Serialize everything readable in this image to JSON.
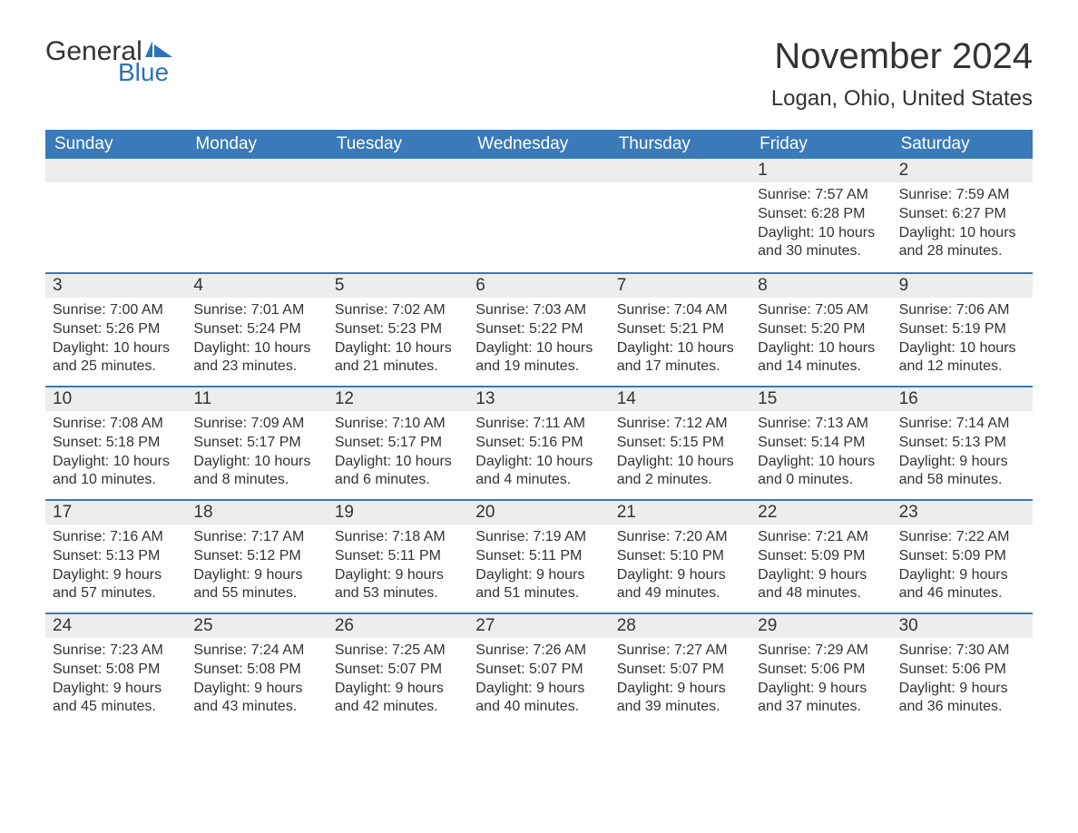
{
  "logo": {
    "text_general": "General",
    "text_blue": "Blue",
    "flag_color": "#2d72b8"
  },
  "title": "November 2024",
  "location": "Logan, Ohio, United States",
  "colors": {
    "header_bg": "#3a7ab8",
    "header_text": "#ffffff",
    "daynum_bg": "#ededed",
    "border": "#3a7ab8",
    "text": "#333333"
  },
  "day_headers": [
    "Sunday",
    "Monday",
    "Tuesday",
    "Wednesday",
    "Thursday",
    "Friday",
    "Saturday"
  ],
  "weeks": [
    [
      {
        "num": "",
        "sunrise": "",
        "sunset": "",
        "daylight1": "",
        "daylight2": ""
      },
      {
        "num": "",
        "sunrise": "",
        "sunset": "",
        "daylight1": "",
        "daylight2": ""
      },
      {
        "num": "",
        "sunrise": "",
        "sunset": "",
        "daylight1": "",
        "daylight2": ""
      },
      {
        "num": "",
        "sunrise": "",
        "sunset": "",
        "daylight1": "",
        "daylight2": ""
      },
      {
        "num": "",
        "sunrise": "",
        "sunset": "",
        "daylight1": "",
        "daylight2": ""
      },
      {
        "num": "1",
        "sunrise": "Sunrise: 7:57 AM",
        "sunset": "Sunset: 6:28 PM",
        "daylight1": "Daylight: 10 hours",
        "daylight2": "and 30 minutes."
      },
      {
        "num": "2",
        "sunrise": "Sunrise: 7:59 AM",
        "sunset": "Sunset: 6:27 PM",
        "daylight1": "Daylight: 10 hours",
        "daylight2": "and 28 minutes."
      }
    ],
    [
      {
        "num": "3",
        "sunrise": "Sunrise: 7:00 AM",
        "sunset": "Sunset: 5:26 PM",
        "daylight1": "Daylight: 10 hours",
        "daylight2": "and 25 minutes."
      },
      {
        "num": "4",
        "sunrise": "Sunrise: 7:01 AM",
        "sunset": "Sunset: 5:24 PM",
        "daylight1": "Daylight: 10 hours",
        "daylight2": "and 23 minutes."
      },
      {
        "num": "5",
        "sunrise": "Sunrise: 7:02 AM",
        "sunset": "Sunset: 5:23 PM",
        "daylight1": "Daylight: 10 hours",
        "daylight2": "and 21 minutes."
      },
      {
        "num": "6",
        "sunrise": "Sunrise: 7:03 AM",
        "sunset": "Sunset: 5:22 PM",
        "daylight1": "Daylight: 10 hours",
        "daylight2": "and 19 minutes."
      },
      {
        "num": "7",
        "sunrise": "Sunrise: 7:04 AM",
        "sunset": "Sunset: 5:21 PM",
        "daylight1": "Daylight: 10 hours",
        "daylight2": "and 17 minutes."
      },
      {
        "num": "8",
        "sunrise": "Sunrise: 7:05 AM",
        "sunset": "Sunset: 5:20 PM",
        "daylight1": "Daylight: 10 hours",
        "daylight2": "and 14 minutes."
      },
      {
        "num": "9",
        "sunrise": "Sunrise: 7:06 AM",
        "sunset": "Sunset: 5:19 PM",
        "daylight1": "Daylight: 10 hours",
        "daylight2": "and 12 minutes."
      }
    ],
    [
      {
        "num": "10",
        "sunrise": "Sunrise: 7:08 AM",
        "sunset": "Sunset: 5:18 PM",
        "daylight1": "Daylight: 10 hours",
        "daylight2": "and 10 minutes."
      },
      {
        "num": "11",
        "sunrise": "Sunrise: 7:09 AM",
        "sunset": "Sunset: 5:17 PM",
        "daylight1": "Daylight: 10 hours",
        "daylight2": "and 8 minutes."
      },
      {
        "num": "12",
        "sunrise": "Sunrise: 7:10 AM",
        "sunset": "Sunset: 5:17 PM",
        "daylight1": "Daylight: 10 hours",
        "daylight2": "and 6 minutes."
      },
      {
        "num": "13",
        "sunrise": "Sunrise: 7:11 AM",
        "sunset": "Sunset: 5:16 PM",
        "daylight1": "Daylight: 10 hours",
        "daylight2": "and 4 minutes."
      },
      {
        "num": "14",
        "sunrise": "Sunrise: 7:12 AM",
        "sunset": "Sunset: 5:15 PM",
        "daylight1": "Daylight: 10 hours",
        "daylight2": "and 2 minutes."
      },
      {
        "num": "15",
        "sunrise": "Sunrise: 7:13 AM",
        "sunset": "Sunset: 5:14 PM",
        "daylight1": "Daylight: 10 hours",
        "daylight2": "and 0 minutes."
      },
      {
        "num": "16",
        "sunrise": "Sunrise: 7:14 AM",
        "sunset": "Sunset: 5:13 PM",
        "daylight1": "Daylight: 9 hours",
        "daylight2": "and 58 minutes."
      }
    ],
    [
      {
        "num": "17",
        "sunrise": "Sunrise: 7:16 AM",
        "sunset": "Sunset: 5:13 PM",
        "daylight1": "Daylight: 9 hours",
        "daylight2": "and 57 minutes."
      },
      {
        "num": "18",
        "sunrise": "Sunrise: 7:17 AM",
        "sunset": "Sunset: 5:12 PM",
        "daylight1": "Daylight: 9 hours",
        "daylight2": "and 55 minutes."
      },
      {
        "num": "19",
        "sunrise": "Sunrise: 7:18 AM",
        "sunset": "Sunset: 5:11 PM",
        "daylight1": "Daylight: 9 hours",
        "daylight2": "and 53 minutes."
      },
      {
        "num": "20",
        "sunrise": "Sunrise: 7:19 AM",
        "sunset": "Sunset: 5:11 PM",
        "daylight1": "Daylight: 9 hours",
        "daylight2": "and 51 minutes."
      },
      {
        "num": "21",
        "sunrise": "Sunrise: 7:20 AM",
        "sunset": "Sunset: 5:10 PM",
        "daylight1": "Daylight: 9 hours",
        "daylight2": "and 49 minutes."
      },
      {
        "num": "22",
        "sunrise": "Sunrise: 7:21 AM",
        "sunset": "Sunset: 5:09 PM",
        "daylight1": "Daylight: 9 hours",
        "daylight2": "and 48 minutes."
      },
      {
        "num": "23",
        "sunrise": "Sunrise: 7:22 AM",
        "sunset": "Sunset: 5:09 PM",
        "daylight1": "Daylight: 9 hours",
        "daylight2": "and 46 minutes."
      }
    ],
    [
      {
        "num": "24",
        "sunrise": "Sunrise: 7:23 AM",
        "sunset": "Sunset: 5:08 PM",
        "daylight1": "Daylight: 9 hours",
        "daylight2": "and 45 minutes."
      },
      {
        "num": "25",
        "sunrise": "Sunrise: 7:24 AM",
        "sunset": "Sunset: 5:08 PM",
        "daylight1": "Daylight: 9 hours",
        "daylight2": "and 43 minutes."
      },
      {
        "num": "26",
        "sunrise": "Sunrise: 7:25 AM",
        "sunset": "Sunset: 5:07 PM",
        "daylight1": "Daylight: 9 hours",
        "daylight2": "and 42 minutes."
      },
      {
        "num": "27",
        "sunrise": "Sunrise: 7:26 AM",
        "sunset": "Sunset: 5:07 PM",
        "daylight1": "Daylight: 9 hours",
        "daylight2": "and 40 minutes."
      },
      {
        "num": "28",
        "sunrise": "Sunrise: 7:27 AM",
        "sunset": "Sunset: 5:07 PM",
        "daylight1": "Daylight: 9 hours",
        "daylight2": "and 39 minutes."
      },
      {
        "num": "29",
        "sunrise": "Sunrise: 7:29 AM",
        "sunset": "Sunset: 5:06 PM",
        "daylight1": "Daylight: 9 hours",
        "daylight2": "and 37 minutes."
      },
      {
        "num": "30",
        "sunrise": "Sunrise: 7:30 AM",
        "sunset": "Sunset: 5:06 PM",
        "daylight1": "Daylight: 9 hours",
        "daylight2": "and 36 minutes."
      }
    ]
  ]
}
